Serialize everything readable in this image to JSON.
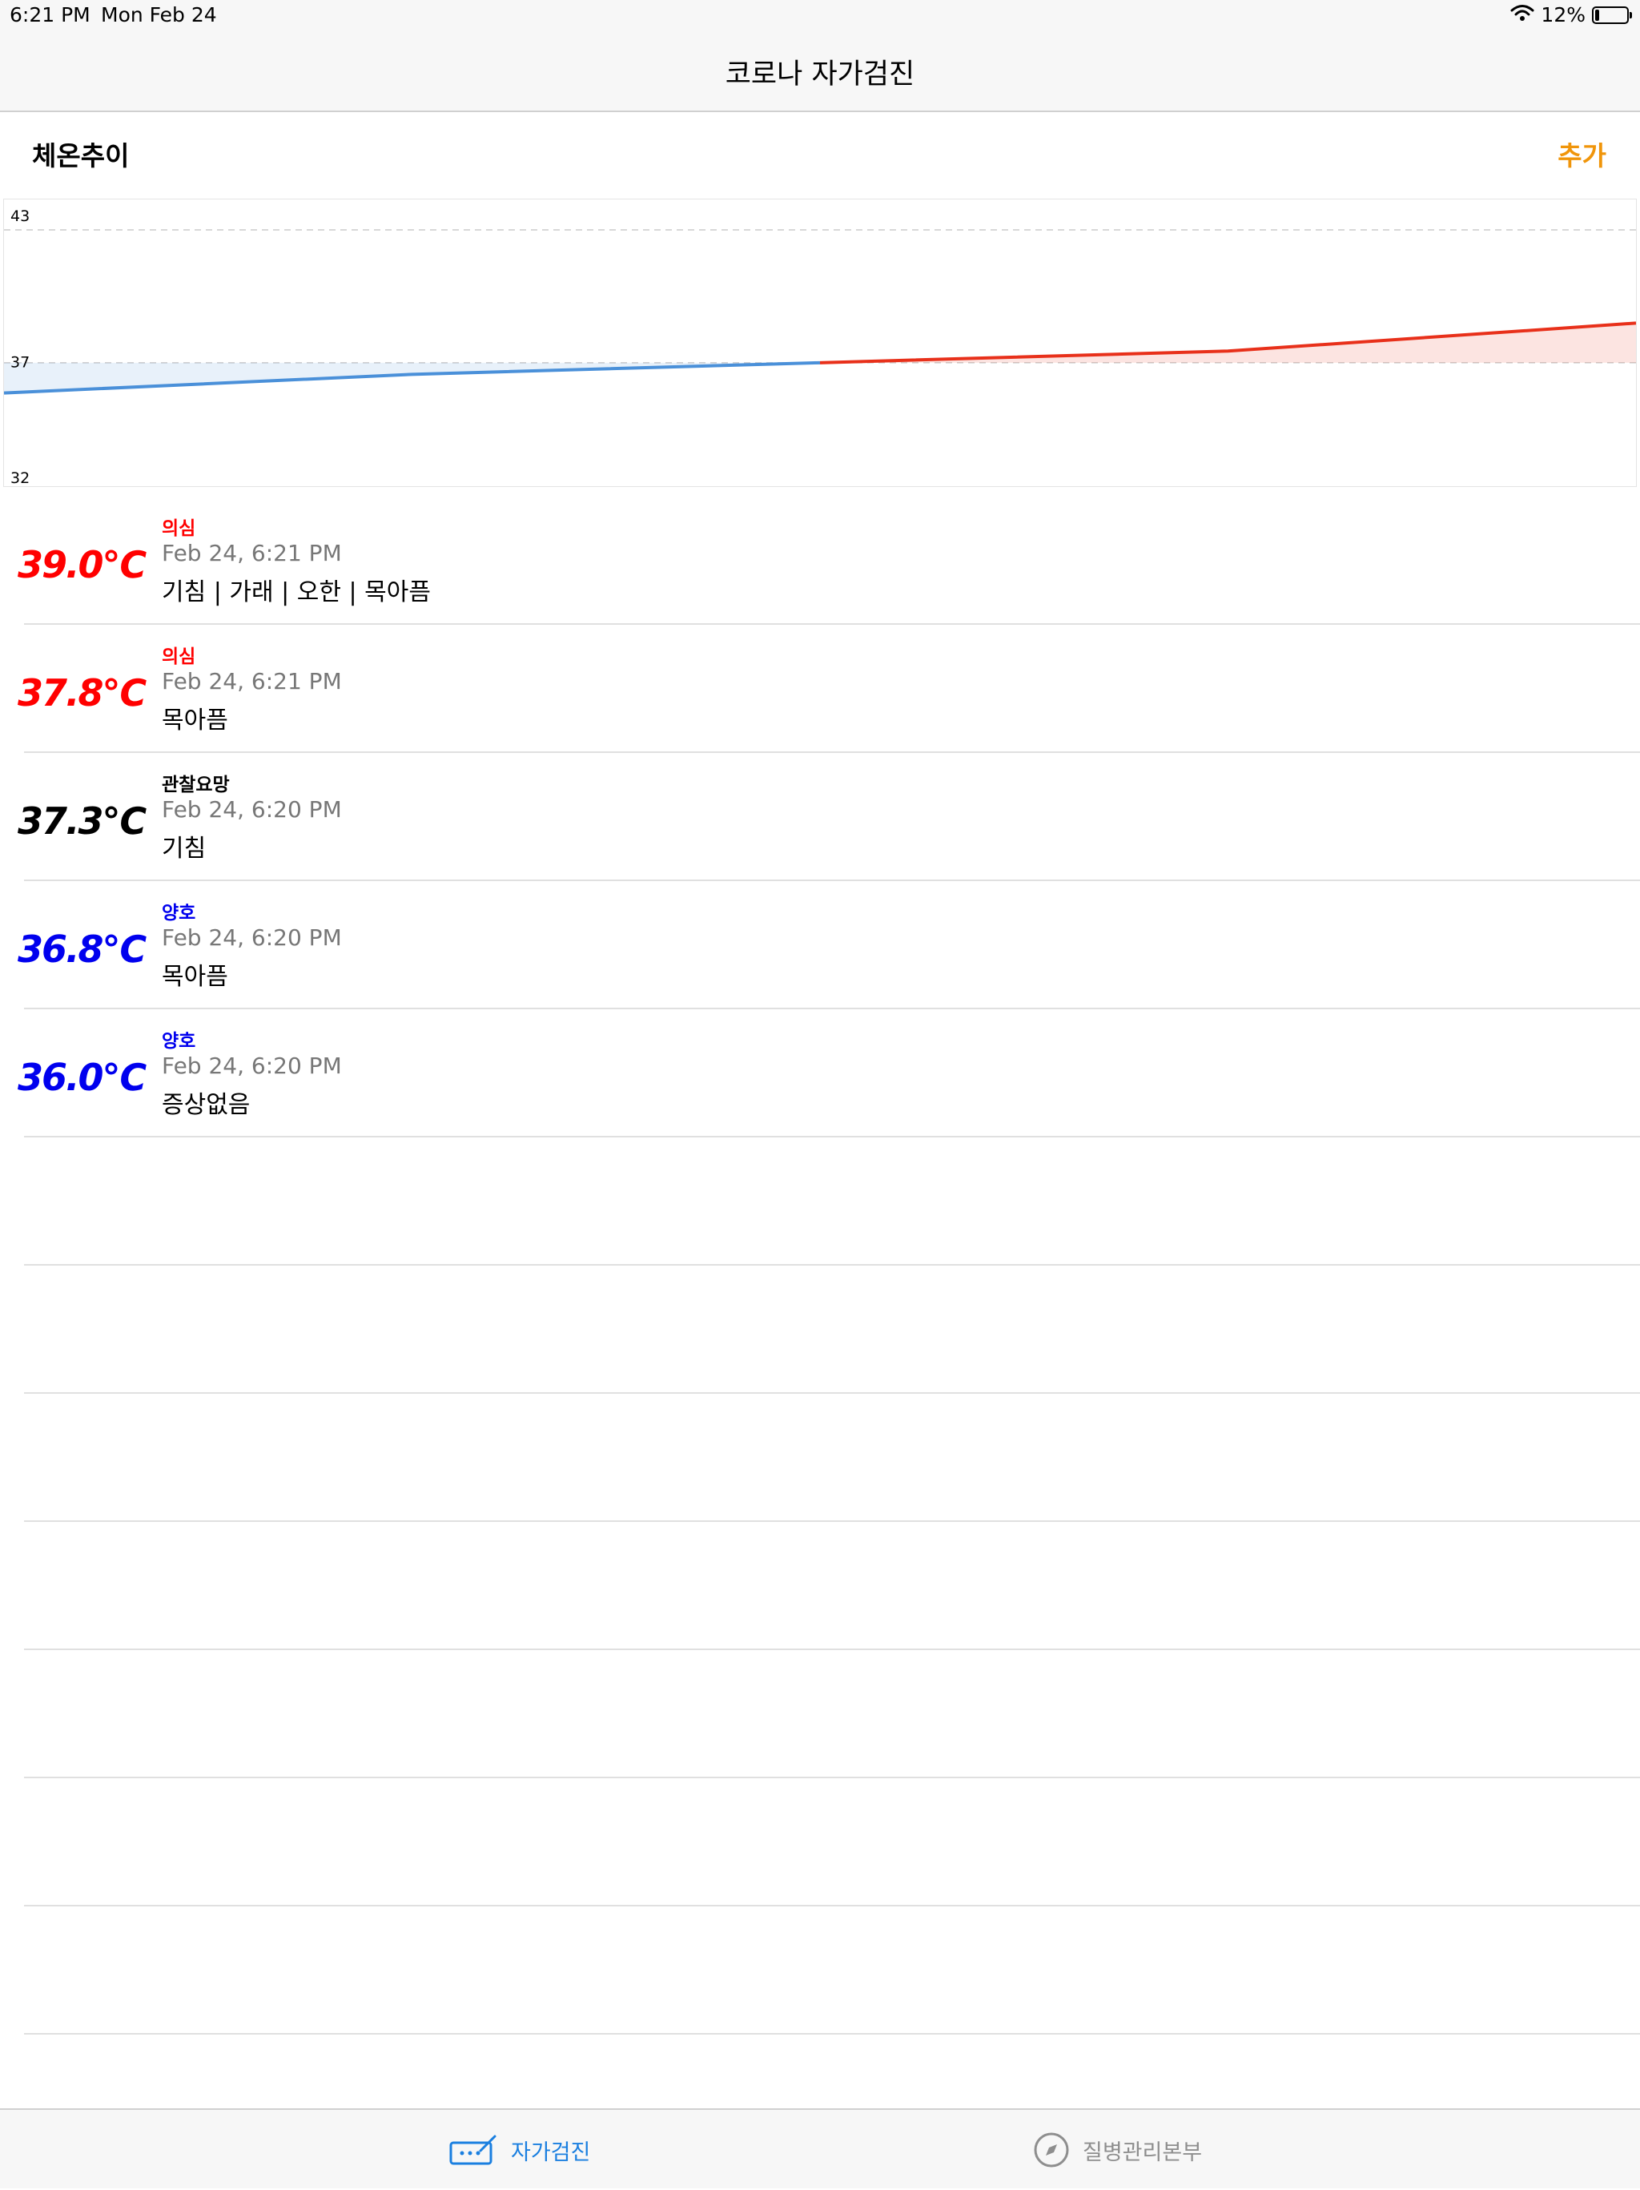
{
  "status_bar": {
    "time": "6:21 PM",
    "date": "Mon Feb 24",
    "battery": "12%",
    "battery_level": 0.12
  },
  "nav": {
    "title": "코로나 자가검진"
  },
  "section": {
    "title": "체온추이",
    "add_label": "추가"
  },
  "chart_data": {
    "type": "line",
    "title": "",
    "xlabel": "",
    "ylabel": "",
    "ylim": [
      32,
      43
    ],
    "y_ticks": [
      "43",
      "37",
      "32"
    ],
    "threshold": 37.3,
    "values": [
      36.0,
      36.8,
      37.3,
      37.8,
      39.0
    ],
    "colors": {
      "below": "#4a90d9",
      "above": "#e8301a"
    }
  },
  "records": [
    {
      "temp": "39.0℃",
      "status": "의심",
      "time": "Feb 24, 6:21 PM",
      "symptoms": "기침 | 가래 | 오한 | 목아픔",
      "color": "#ff0000"
    },
    {
      "temp": "37.8℃",
      "status": "의심",
      "time": "Feb 24, 6:21 PM",
      "symptoms": "목아픔",
      "color": "#ff0000"
    },
    {
      "temp": "37.3℃",
      "status": "관찰요망",
      "time": "Feb 24, 6:20 PM",
      "symptoms": "기침",
      "color": "#000000"
    },
    {
      "temp": "36.8℃",
      "status": "양호",
      "time": "Feb 24, 6:20 PM",
      "symptoms": "목아픔",
      "color": "#0000ee"
    },
    {
      "temp": "36.0℃",
      "status": "양호",
      "time": "Feb 24, 6:20 PM",
      "symptoms": "증상없음",
      "color": "#0000ee"
    }
  ],
  "tabs": [
    {
      "label": "자가검진",
      "icon": "self-check-icon",
      "active": true,
      "color": "#1a7fe0"
    },
    {
      "label": "질병관리본부",
      "icon": "compass-icon",
      "active": false,
      "color": "#8e8e8e"
    }
  ]
}
